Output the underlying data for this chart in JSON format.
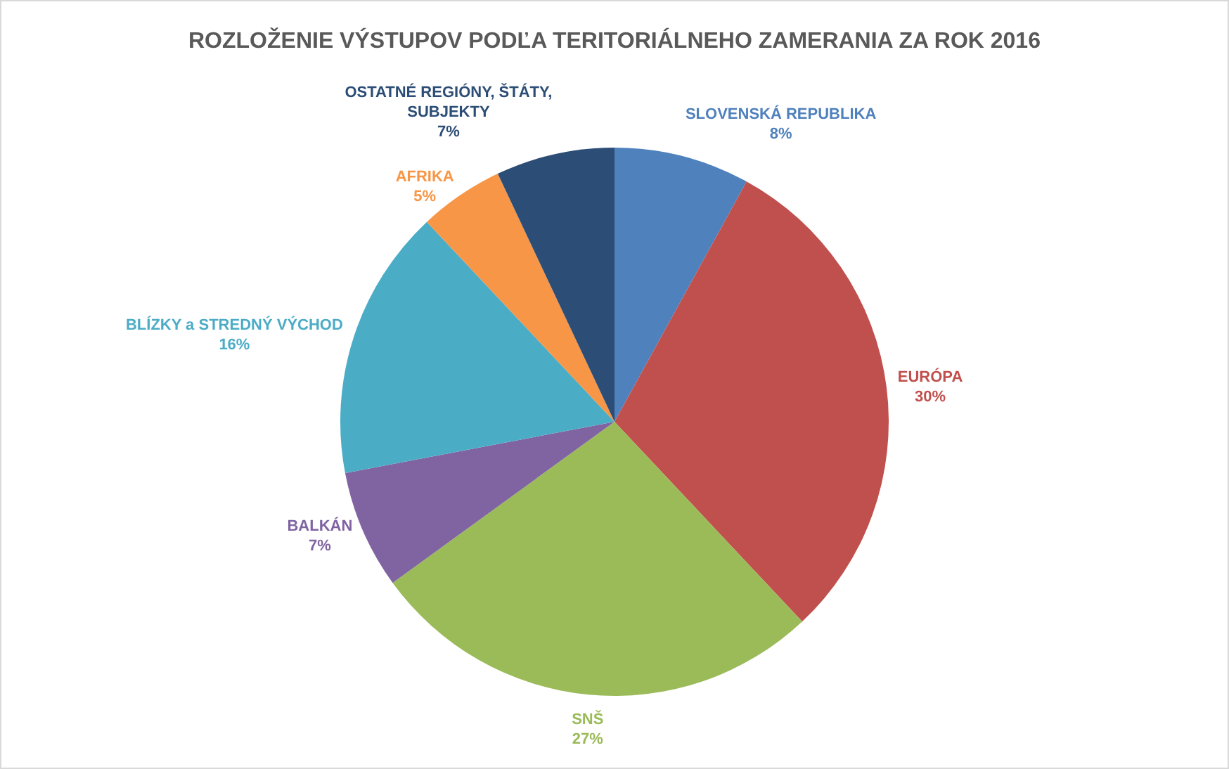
{
  "chart_data": {
    "type": "pie",
    "title": "ROZLOŽENIE VÝSTUPOV PODĽA TERITORIÁLNEHO ZAMERANIA ZA ROK 2016",
    "categories": [
      "SLOVENSKÁ REPUBLIKA",
      "EURÓPA",
      "SNŠ",
      "BALKÁN",
      "BLÍZKY a STREDNÝ VÝCHOD",
      "AFRIKA",
      "OSTATNÉ REGIÓNY, ŠTÁTY, SUBJEKTY"
    ],
    "values": [
      8,
      30,
      27,
      7,
      16,
      5,
      7
    ],
    "colors": [
      "#4f81bd",
      "#c0504d",
      "#9bbb59",
      "#8064a2",
      "#4bacc6",
      "#f79646",
      "#2c4d75"
    ],
    "value_labels": [
      "8%",
      "30%",
      "27%",
      "7%",
      "16%",
      "5%",
      "7%"
    ]
  }
}
